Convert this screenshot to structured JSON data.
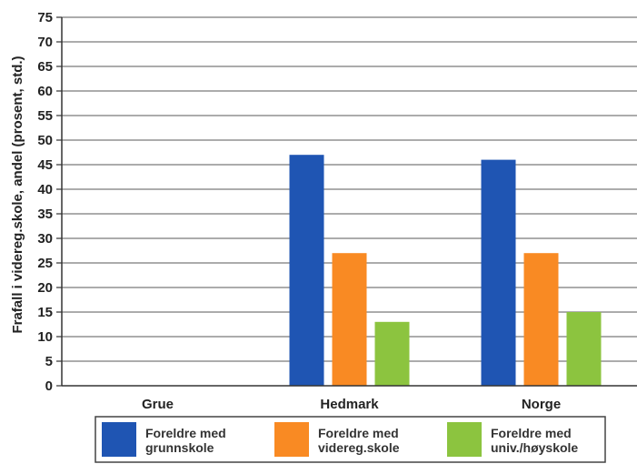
{
  "chart_data": {
    "type": "bar",
    "title": "",
    "xlabel": "",
    "ylabel": "Frafall i videreg.skole, andel (prosent, std.)",
    "ylim": [
      0,
      75
    ],
    "yticks": [
      0,
      5,
      10,
      15,
      20,
      25,
      30,
      35,
      40,
      45,
      50,
      55,
      60,
      65,
      70,
      75
    ],
    "grid": true,
    "legend_position": "bottom",
    "categories": [
      "Grue",
      "Hedmark",
      "Norge"
    ],
    "series": [
      {
        "name": "Foreldre med grunnskole",
        "legend_lines": [
          "Foreldre med",
          "grunnskole"
        ],
        "color": "#1f55b3",
        "values": [
          null,
          47,
          46
        ]
      },
      {
        "name": "Foreldre med videreg.skole",
        "legend_lines": [
          "Foreldre med",
          "videreg.skole"
        ],
        "color": "#f98a23",
        "values": [
          null,
          27,
          27
        ]
      },
      {
        "name": "Foreldre med univ./høyskole",
        "legend_lines": [
          "Foreldre med",
          "univ./høyskole"
        ],
        "color": "#8cc43f",
        "values": [
          null,
          13,
          15
        ]
      }
    ]
  }
}
